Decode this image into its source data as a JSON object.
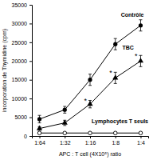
{
  "chart_data": {
    "type": "line",
    "x_label": "APC : T cell (4X10⁵) ratio",
    "y_label": "incorporation de Thymidine (cpm)",
    "categories": [
      "1:64",
      "1:32",
      "1:16",
      "1:8",
      "1:4"
    ],
    "series": [
      {
        "name": "Contrôle",
        "color": "#000000",
        "marker": "circle",
        "values": [
          4500,
          7000,
          15000,
          24500,
          29500
        ],
        "errors": [
          1000,
          900,
          1500,
          1500,
          1500
        ]
      },
      {
        "name": "TBC",
        "color": "#000000",
        "marker": "triangle",
        "values": [
          2000,
          3500,
          8500,
          15500,
          20000
        ],
        "errors": [
          500,
          700,
          1000,
          1500,
          1500
        ]
      },
      {
        "name": "Lymphocytes T seuls",
        "color": "#000000",
        "marker": "circle-open",
        "values": [
          800,
          800,
          800,
          800,
          800
        ],
        "errors": [
          200,
          200,
          200,
          200,
          200
        ]
      }
    ],
    "ylim": [
      0,
      35000
    ],
    "yticks": [
      0,
      5000,
      10000,
      15000,
      20000,
      25000,
      30000,
      35000
    ],
    "annotations": [
      {
        "text": "*",
        "series": "TBC",
        "category": "1:16"
      },
      {
        "text": "*",
        "series": "TBC",
        "category": "1:8"
      },
      {
        "text": "*",
        "series": "TBC",
        "category": "1:4"
      }
    ]
  }
}
